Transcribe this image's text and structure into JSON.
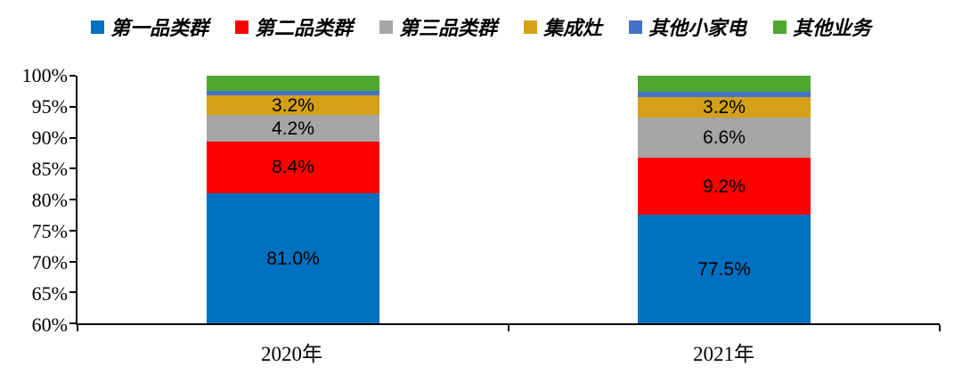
{
  "legend": {
    "items": [
      {
        "label": "第一品类群",
        "color": "#0070C0"
      },
      {
        "label": "第二品类群",
        "color": "#FF0000"
      },
      {
        "label": "第三品类群",
        "color": "#A6A6A6"
      },
      {
        "label": "集成灶",
        "color": "#D3A017"
      },
      {
        "label": "其他小家电",
        "color": "#4472C4"
      },
      {
        "label": "其他业务",
        "color": "#4EA72E"
      }
    ]
  },
  "chart_data": {
    "type": "bar",
    "stacked": true,
    "stacked_100": true,
    "categories": [
      "2020年",
      "2021年"
    ],
    "series": [
      {
        "name": "第一品类群",
        "color": "#0070C0",
        "values": [
          81.0,
          77.5
        ],
        "labels": [
          "81.0%",
          "77.5%"
        ]
      },
      {
        "name": "第二品类群",
        "color": "#FF0000",
        "values": [
          8.4,
          9.2
        ],
        "labels": [
          "8.4%",
          "9.2%"
        ]
      },
      {
        "name": "第三品类群",
        "color": "#A6A6A6",
        "values": [
          4.2,
          6.6
        ],
        "labels": [
          "4.2%",
          "6.6%"
        ]
      },
      {
        "name": "集成灶",
        "color": "#D3A017",
        "values": [
          3.2,
          3.2
        ],
        "labels": [
          "3.2%",
          "3.2%"
        ]
      },
      {
        "name": "其他小家电",
        "color": "#4472C4",
        "values": [
          0.8,
          0.9
        ],
        "labels": [
          "",
          ""
        ]
      },
      {
        "name": "其他业务",
        "color": "#4EA72E",
        "values": [
          2.4,
          2.6
        ],
        "labels": [
          "",
          ""
        ]
      }
    ],
    "ylim": [
      60,
      100
    ],
    "yticks": [
      "60%",
      "65%",
      "70%",
      "75%",
      "80%",
      "85%",
      "90%",
      "95%",
      "100%"
    ],
    "grid": false,
    "legend_position": "top",
    "title": "",
    "xlabel": "",
    "ylabel": ""
  }
}
